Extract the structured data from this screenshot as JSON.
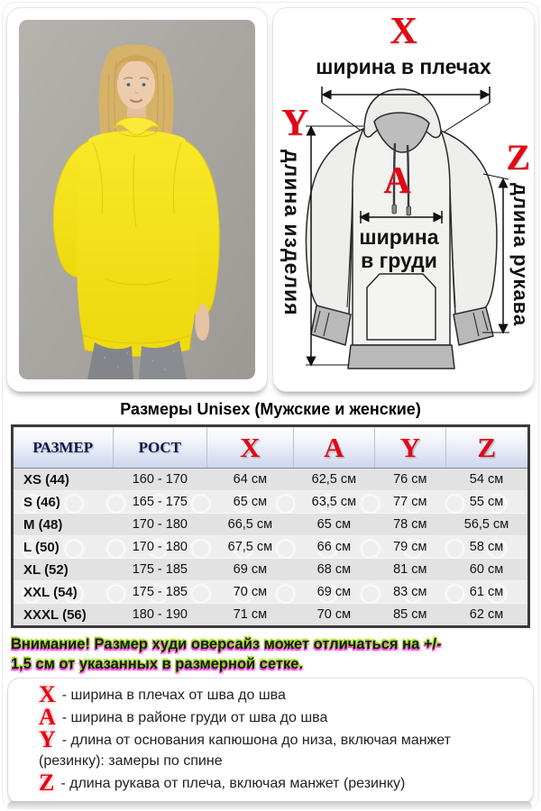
{
  "colors": {
    "accent_red": "#e30613",
    "header_navy": "#16163f",
    "warning_text": "#141430",
    "warning_glow_green": "#9ade00",
    "warning_glow_magenta": "#ff44cf",
    "table_row_light": "#eeeeee",
    "table_row_dark": "#e2e2e2",
    "hoodie_yellow": "#f6e41f",
    "photo_background": "#a9a6a1",
    "pants_gray": "#87888c"
  },
  "diagram": {
    "x_letter": "X",
    "x_label": "ширина в плечах",
    "a_letter": "A",
    "a_label_line1": "ширина",
    "a_label_line2": "в груди",
    "y_letter": "Y",
    "y_label": "длина изделия",
    "z_letter": "Z",
    "z_label": "длина рукава"
  },
  "size_table": {
    "title": "Размеры Unisex (Мужские и женские)",
    "columns": [
      "РАЗМЕР",
      "РОСТ",
      "X",
      "A",
      "Y",
      "Z"
    ],
    "rows": [
      [
        "XS (44)",
        "160 - 170",
        "64 см",
        "62,5 см",
        "76 см",
        "54 см"
      ],
      [
        "S (46)",
        "165 - 175",
        "65 см",
        "63,5 см",
        "77 см",
        "55 см"
      ],
      [
        "M (48)",
        "170 - 180",
        "66,5 см",
        "65 см",
        "78 см",
        "56,5 см"
      ],
      [
        "L (50)",
        "170 - 180",
        "67,5 см",
        "66 см",
        "79 см",
        "58 см"
      ],
      [
        "XL (52)",
        "175 - 185",
        "69 см",
        "68 см",
        "81 см",
        "60 см"
      ],
      [
        "XXL (54)",
        "175 - 185",
        "70 см",
        "69 см",
        "83 см",
        "61 см"
      ],
      [
        "XXXL (56)",
        "180 - 190",
        "71 см",
        "70 см",
        "85 см",
        "62 см"
      ]
    ]
  },
  "warning": {
    "text": "Внимание! Размер худи оверсайз может отличаться на +/- 1,5 см от указанных в размерной сетке."
  },
  "legend": {
    "items": [
      {
        "letter": "X",
        "text": "- ширина в плечах от шва до шва"
      },
      {
        "letter": "A",
        "text": "- ширина в районе груди от шва до шва"
      },
      {
        "letter": "Y",
        "text": "- длина от основания капюшона до низа, включая манжет (резинку): замеры по спине"
      },
      {
        "letter": "Z",
        "text": "- длина рукава от плеча, включая манжет (резинку)"
      }
    ]
  }
}
